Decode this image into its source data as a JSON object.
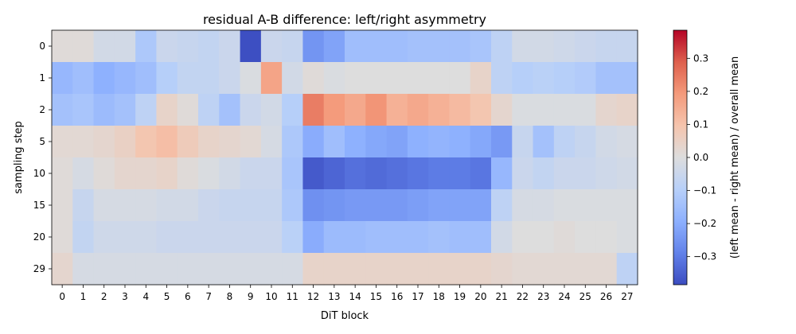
{
  "chart_data": {
    "type": "heatmap",
    "title": "residual A-B difference: left/right asymmetry",
    "xlabel": "DiT block",
    "ylabel": "sampling step",
    "colorbar_label": "(left mean - right mean) / overall mean",
    "colormap": "coolwarm",
    "vmin": -0.385,
    "vmax": 0.385,
    "colorbar_ticks": [
      0.3,
      0.2,
      0.1,
      0.0,
      -0.1,
      -0.2,
      -0.3
    ],
    "colorbar_tick_labels": [
      "0.3",
      "0.2",
      "0.1",
      "0.0",
      "−0.1",
      "−0.2",
      "−0.3"
    ],
    "x_labels": [
      "0",
      "1",
      "2",
      "3",
      "4",
      "5",
      "6",
      "7",
      "8",
      "9",
      "10",
      "11",
      "12",
      "13",
      "14",
      "15",
      "16",
      "17",
      "18",
      "19",
      "20",
      "21",
      "22",
      "23",
      "24",
      "25",
      "26",
      "27"
    ],
    "y_labels": [
      "0",
      "1",
      "2",
      "5",
      "10",
      "15",
      "20",
      "29"
    ],
    "values": [
      [
        0.01,
        0.01,
        -0.03,
        -0.03,
        -0.12,
        -0.05,
        -0.06,
        -0.07,
        -0.05,
        -0.38,
        -0.05,
        -0.06,
        -0.25,
        -0.22,
        -0.15,
        -0.15,
        -0.15,
        -0.14,
        -0.14,
        -0.14,
        -0.13,
        -0.08,
        -0.03,
        -0.03,
        -0.04,
        -0.05,
        -0.06,
        -0.06
      ],
      [
        -0.17,
        -0.15,
        -0.19,
        -0.17,
        -0.15,
        -0.1,
        -0.07,
        -0.07,
        -0.05,
        -0.01,
        0.17,
        -0.03,
        0.01,
        -0.01,
        0.0,
        0.0,
        0.0,
        0.0,
        0.0,
        0.0,
        0.04,
        -0.08,
        -0.1,
        -0.09,
        -0.1,
        -0.11,
        -0.14,
        -0.14
      ],
      [
        -0.14,
        -0.13,
        -0.16,
        -0.14,
        -0.08,
        0.04,
        0.01,
        -0.08,
        -0.14,
        -0.05,
        -0.03,
        -0.1,
        0.24,
        0.19,
        0.16,
        0.2,
        0.14,
        0.16,
        0.14,
        0.12,
        0.09,
        0.03,
        -0.01,
        -0.01,
        -0.01,
        -0.01,
        0.03,
        0.04
      ],
      [
        0.02,
        0.02,
        0.03,
        0.05,
        0.09,
        0.11,
        0.07,
        0.04,
        0.03,
        0.02,
        -0.02,
        -0.12,
        -0.2,
        -0.15,
        -0.19,
        -0.21,
        -0.22,
        -0.19,
        -0.18,
        -0.19,
        -0.21,
        -0.24,
        -0.06,
        -0.14,
        -0.08,
        -0.06,
        -0.03,
        -0.02
      ],
      [
        0.01,
        -0.02,
        0.01,
        0.03,
        0.03,
        0.04,
        0.01,
        -0.01,
        -0.03,
        -0.05,
        -0.05,
        -0.13,
        -0.36,
        -0.34,
        -0.32,
        -0.33,
        -0.32,
        -0.31,
        -0.3,
        -0.3,
        -0.31,
        -0.17,
        -0.05,
        -0.07,
        -0.05,
        -0.05,
        -0.04,
        -0.03
      ],
      [
        0.01,
        -0.06,
        -0.02,
        -0.02,
        -0.02,
        -0.03,
        -0.03,
        -0.05,
        -0.06,
        -0.06,
        -0.06,
        -0.12,
        -0.26,
        -0.25,
        -0.24,
        -0.24,
        -0.24,
        -0.23,
        -0.22,
        -0.22,
        -0.22,
        -0.08,
        -0.02,
        -0.02,
        -0.01,
        -0.01,
        -0.01,
        -0.01
      ],
      [
        0.01,
        -0.07,
        -0.04,
        -0.04,
        -0.04,
        -0.05,
        -0.05,
        -0.05,
        -0.05,
        -0.05,
        -0.05,
        -0.09,
        -0.2,
        -0.16,
        -0.16,
        -0.15,
        -0.15,
        -0.15,
        -0.14,
        -0.15,
        -0.15,
        -0.03,
        0.0,
        0.0,
        0.01,
        0.0,
        0.0,
        -0.01
      ],
      [
        0.03,
        -0.02,
        -0.02,
        -0.02,
        -0.02,
        -0.02,
        -0.02,
        -0.02,
        -0.02,
        -0.02,
        -0.02,
        -0.02,
        0.04,
        0.04,
        0.04,
        0.04,
        0.04,
        0.04,
        0.04,
        0.04,
        0.04,
        0.03,
        0.02,
        0.02,
        0.02,
        0.02,
        0.02,
        -0.08
      ]
    ]
  }
}
